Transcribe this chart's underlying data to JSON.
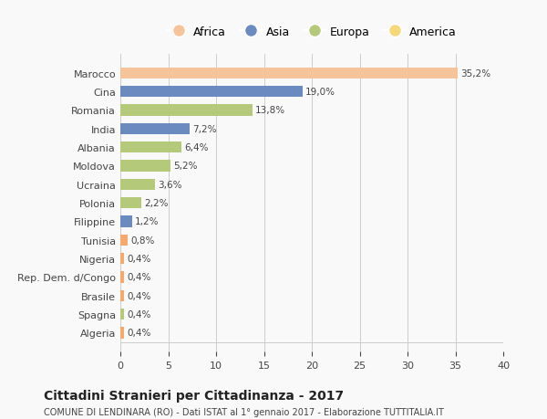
{
  "categories": [
    "Algeria",
    "Spagna",
    "Brasile",
    "Rep. Dem. d/Congo",
    "Nigeria",
    "Tunisia",
    "Filippine",
    "Polonia",
    "Ucraina",
    "Moldova",
    "Albania",
    "India",
    "Romania",
    "Cina",
    "Marocco"
  ],
  "values": [
    0.4,
    0.4,
    0.4,
    0.4,
    0.4,
    0.8,
    1.2,
    2.2,
    3.6,
    5.2,
    6.4,
    7.2,
    13.8,
    19.0,
    35.2
  ],
  "colors": [
    "#f5a96e",
    "#b5c97a",
    "#f5a96e",
    "#f5a96e",
    "#f5a96e",
    "#f5a96e",
    "#6b8abf",
    "#b5c97a",
    "#b5c97a",
    "#b5c97a",
    "#b5c97a",
    "#6b8abf",
    "#b5c97a",
    "#6b8abf",
    "#f5c49a"
  ],
  "labels": [
    "0,4%",
    "0,4%",
    "0,4%",
    "0,4%",
    "0,4%",
    "0,8%",
    "1,2%",
    "2,2%",
    "3,6%",
    "5,2%",
    "6,4%",
    "7,2%",
    "13,8%",
    "19,0%",
    "35,2%"
  ],
  "legend_labels": [
    "Africa",
    "Asia",
    "Europa",
    "America"
  ],
  "legend_colors": [
    "#f5c49a",
    "#6b8abf",
    "#b5c97a",
    "#f5d877"
  ],
  "title": "Cittadini Stranieri per Cittadinanza - 2017",
  "subtitle": "COMUNE DI LENDINARA (RO) - Dati ISTAT al 1° gennaio 2017 - Elaborazione TUTTITALIA.IT",
  "xlim": [
    0,
    40
  ],
  "xticks": [
    0,
    5,
    10,
    15,
    20,
    25,
    30,
    35,
    40
  ],
  "background_color": "#f9f9f9",
  "grid_color": "#cccccc"
}
